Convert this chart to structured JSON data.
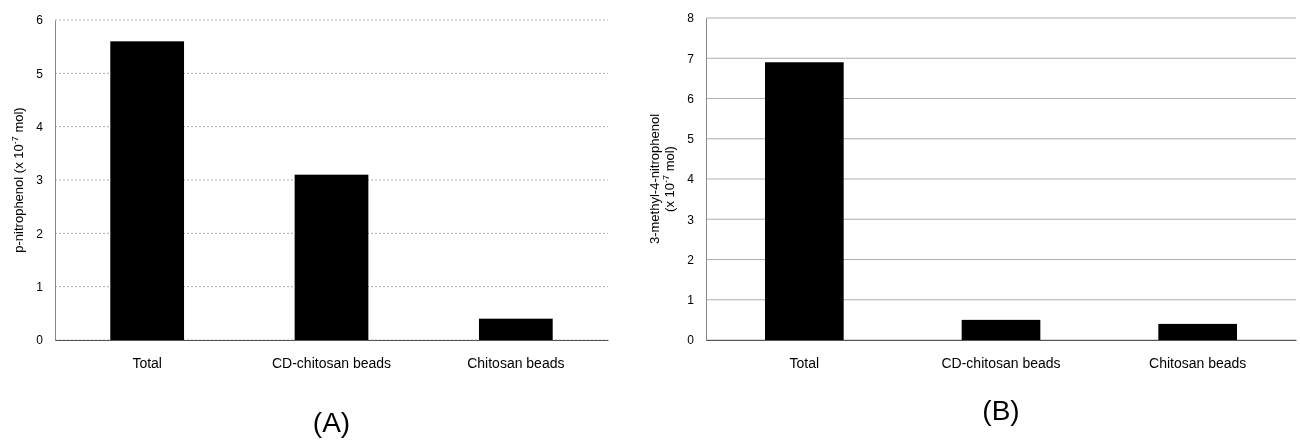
{
  "chart_data": [
    {
      "type": "bar",
      "title": "(A)",
      "categories": [
        "Total",
        "CD-chitosan beads",
        "Chitosan beads"
      ],
      "values": [
        5.6,
        3.1,
        0.4
      ],
      "color": "#000000",
      "ylabel": "p-nitrophenol (x 10$^{-7}$ mol)",
      "ylim": [
        0,
        6
      ],
      "yticks": [
        0,
        1,
        2,
        3,
        4,
        5,
        6
      ],
      "grid": "y"
    },
    {
      "type": "bar",
      "title": "(B)",
      "categories": [
        "Total",
        "CD-chitosan beads",
        "Chitosan beads"
      ],
      "values": [
        6.9,
        0.5,
        0.4
      ],
      "color": "#000000",
      "ylabel": "3-methyl-4-nitrophenol\n(x 10$^{-7}$ mol)",
      "ylim": [
        0,
        8
      ],
      "yticks": [
        0,
        1,
        2,
        3,
        4,
        5,
        6,
        7,
        8
      ],
      "grid": "y"
    }
  ]
}
